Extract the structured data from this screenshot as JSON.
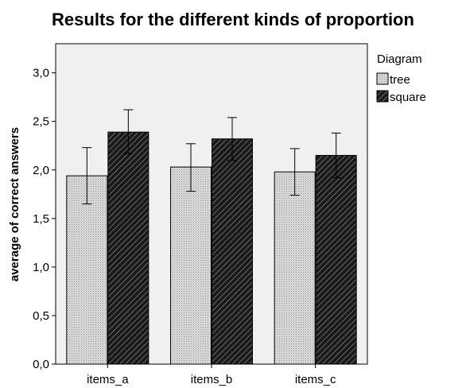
{
  "chart_data": {
    "type": "bar",
    "title": "Results for the different kinds of proportion",
    "xlabel": "",
    "ylabel": "average of correct answers",
    "categories": [
      "items_a",
      "items_b",
      "items_c"
    ],
    "ylim": [
      0,
      3.3
    ],
    "yticks": [
      0,
      0.5,
      1.0,
      1.5,
      2.0,
      2.5,
      3.0
    ],
    "ytick_labels": [
      "0,0",
      "0,5",
      "1,0",
      "1,5",
      "2,0",
      "2,5",
      "3,0"
    ],
    "grid": false,
    "legend": {
      "title": "Diagram",
      "position": "right"
    },
    "error_bars": true,
    "series": [
      {
        "name": "tree",
        "values": [
          1.94,
          2.03,
          1.98
        ],
        "err_low": [
          1.65,
          1.78,
          1.74
        ],
        "err_high": [
          2.23,
          2.27,
          2.22
        ],
        "pattern": "dots",
        "color": "#cfcfcf"
      },
      {
        "name": "square",
        "values": [
          2.39,
          2.32,
          2.15
        ],
        "err_low": [
          2.17,
          2.1,
          1.92
        ],
        "err_high": [
          2.62,
          2.54,
          2.38
        ],
        "pattern": "diagonal-hatch",
        "color": "#1e1e1e"
      }
    ],
    "plot_background": "#f0f0f0"
  }
}
